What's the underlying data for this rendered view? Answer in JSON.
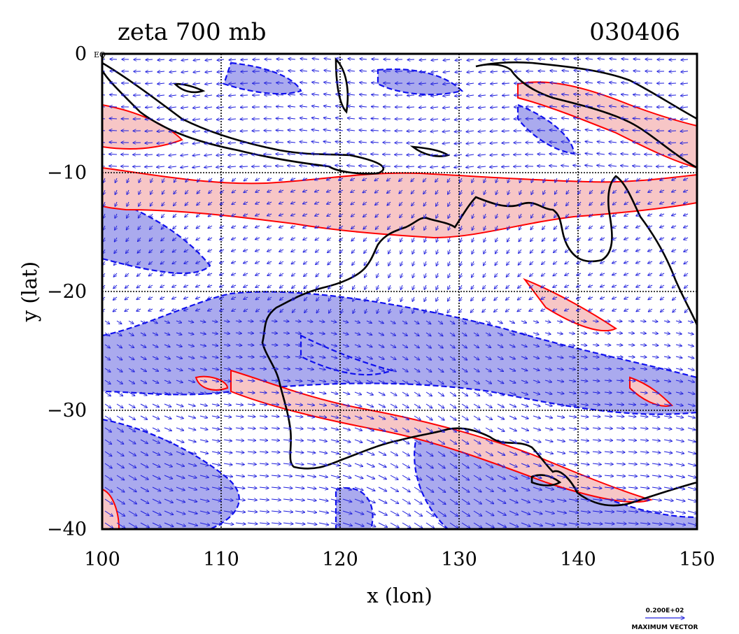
{
  "header": {
    "title": "zeta 700 mb",
    "date": "030406"
  },
  "axes": {
    "xlabel": "x (lon)",
    "ylabel": "y (lat)",
    "xlim": [
      100,
      150
    ],
    "ylim": [
      -40,
      0
    ],
    "x_ticks": [
      "100",
      "110",
      "120",
      "130",
      "140",
      "150"
    ],
    "y_ticks": [
      "0",
      "−10",
      "−20",
      "−30",
      "−40"
    ],
    "eq_label": "EQ",
    "grid": true
  },
  "vector_key": {
    "magnitude": "0.200E+02",
    "label": "MAXIMUM VECTOR"
  },
  "colors": {
    "positive_fill": "#f7c6c6",
    "positive_line": "#ff0000",
    "negative_fill": "#aaaaee",
    "negative_line": "#1010ee",
    "vector": "#2020dd",
    "coast": "#000000"
  }
}
